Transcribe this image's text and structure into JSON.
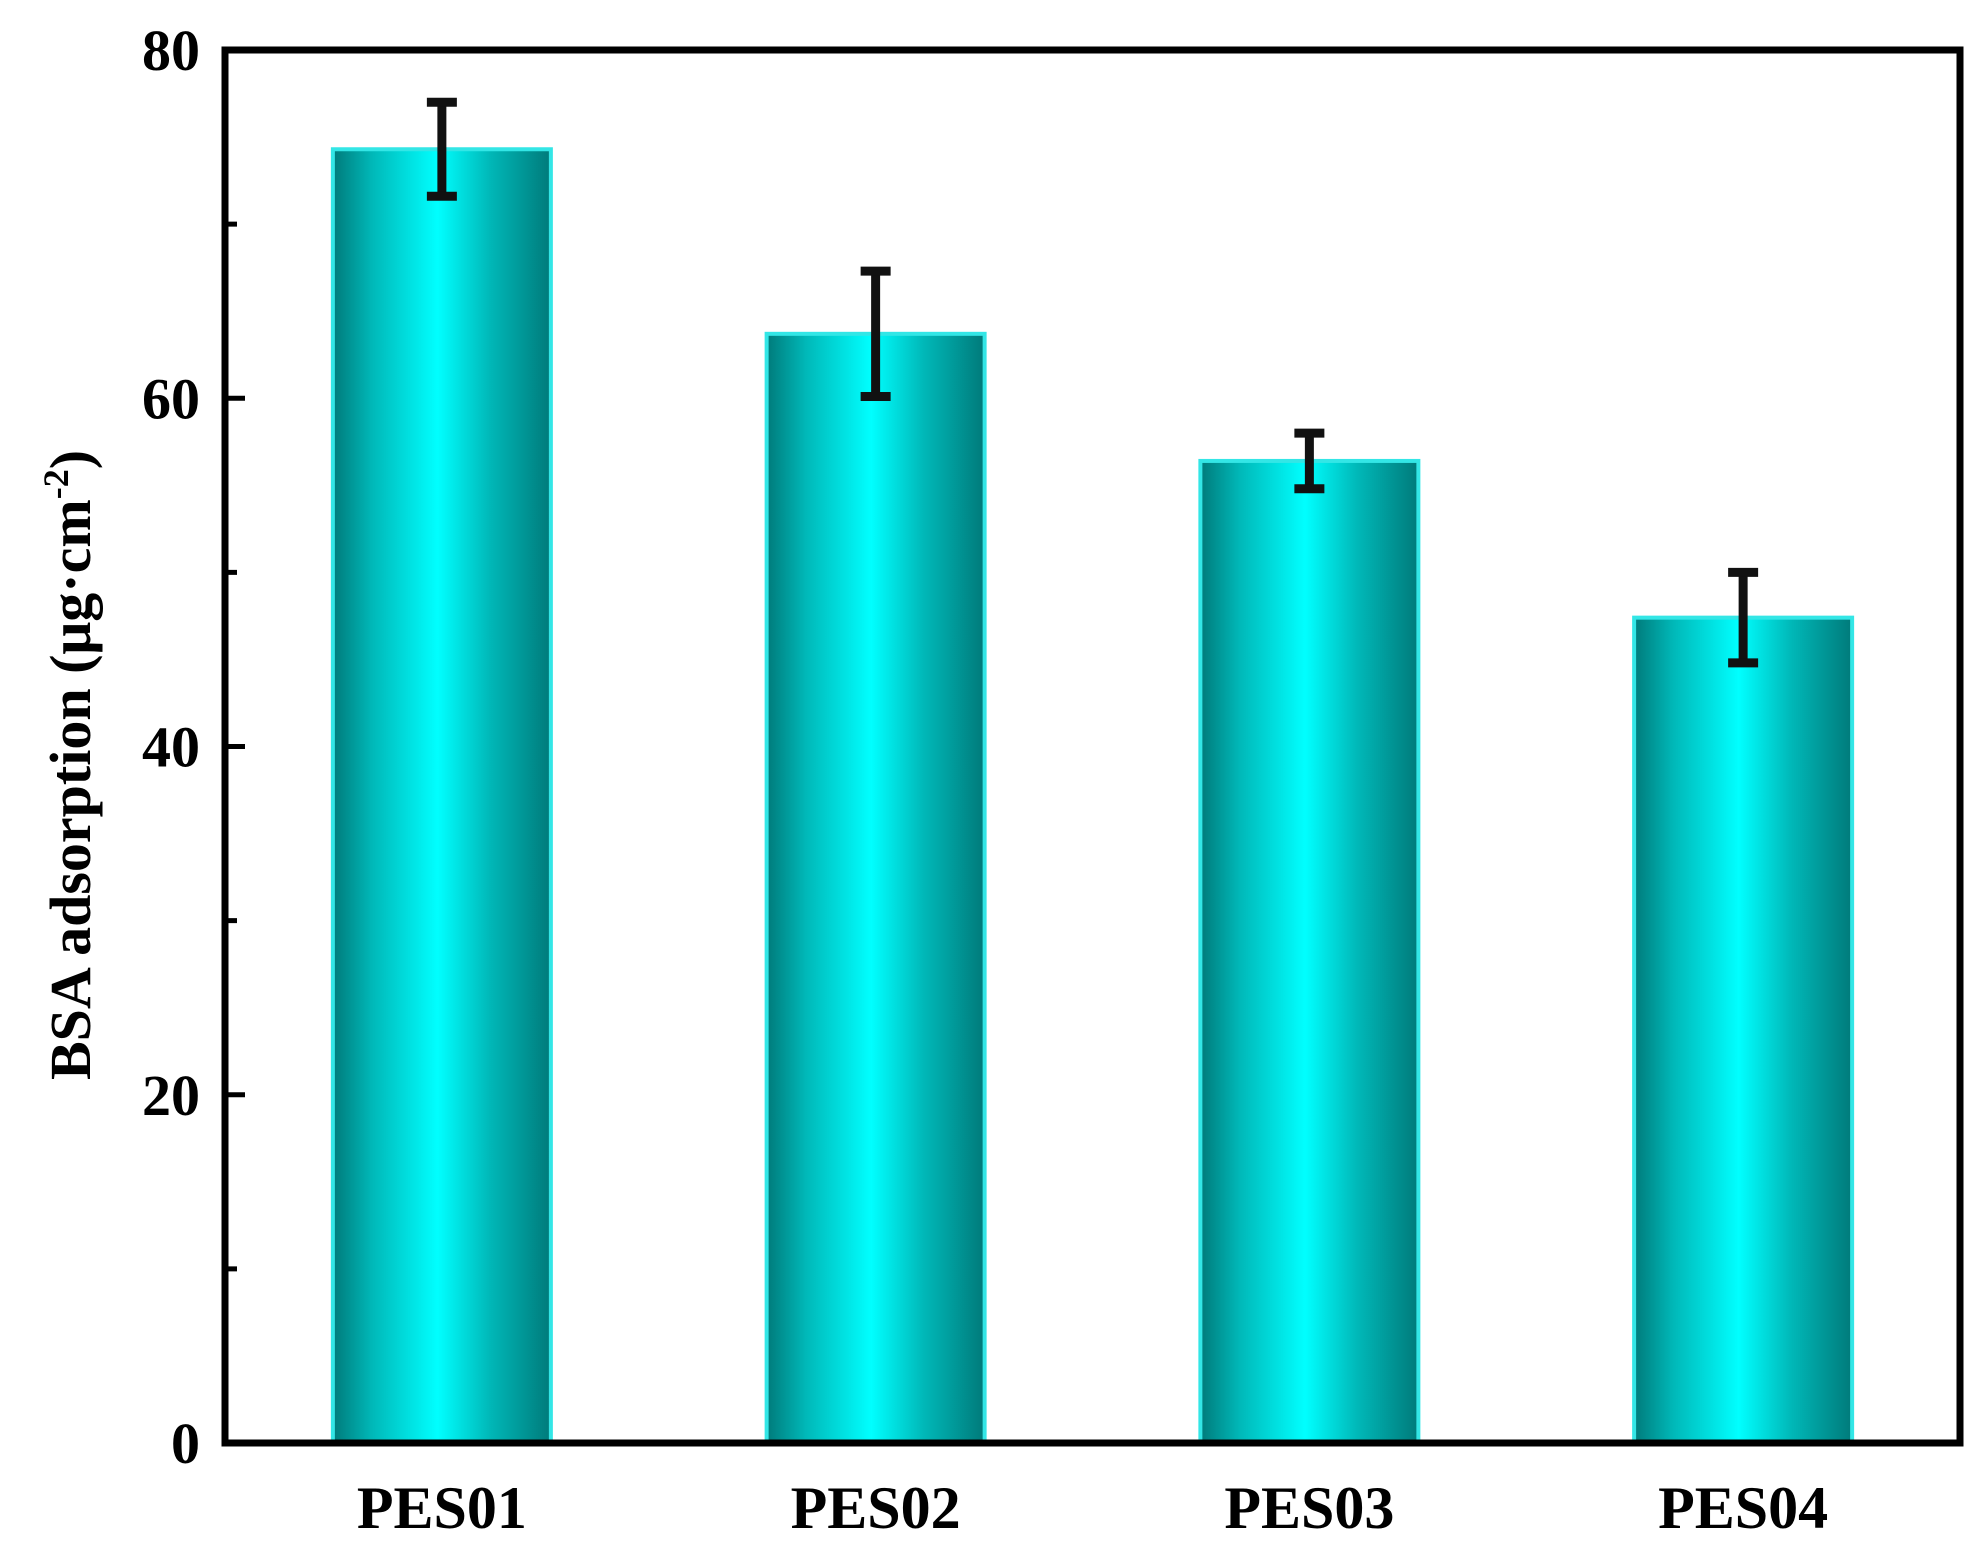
{
  "chart_data": {
    "type": "bar",
    "title": "",
    "xlabel": "",
    "ylabel": "BSA adsorption (μg·cm",
    "ylabel_sup": "-2",
    "ylabel_close": ")",
    "ylim": [
      0,
      80
    ],
    "yticks": [
      0,
      20,
      40,
      60,
      80
    ],
    "yminor": [
      10,
      30,
      50,
      70
    ],
    "categories": [
      "PES01",
      "PES02",
      "PES03",
      "PES04"
    ],
    "values": [
      74.3,
      63.7,
      56.4,
      47.4
    ],
    "errors": [
      2.7,
      3.6,
      1.6,
      2.6
    ],
    "grid": false,
    "colors": {
      "bar_dark": "#007a7a",
      "bar_mid": "#00b8b8",
      "bar_light": "#00ffff",
      "bar_edge": "#33e6e6",
      "error": "#111111",
      "axis": "#000000"
    }
  }
}
